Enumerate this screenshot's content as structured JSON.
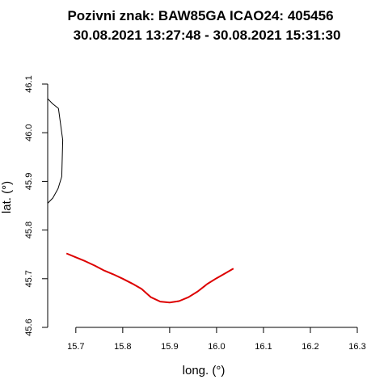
{
  "chart_data": {
    "type": "line",
    "title": "Pozivni znak: BAW85GA  ICAO24: 405456",
    "subtitle": "30.08.2021 13:27:48 - 30.08.2021 15:31:30",
    "xlabel": "long. (°)",
    "ylabel": "lat. (°)",
    "xlim": [
      15.64,
      16.3
    ],
    "ylim": [
      45.6,
      46.1
    ],
    "x_ticks": [
      "15.7",
      "15.8",
      "15.9",
      "16.0",
      "16.1",
      "16.2",
      "16.3"
    ],
    "y_ticks": [
      "45.6",
      "45.7",
      "45.8",
      "45.9",
      "46.0",
      "46.1"
    ],
    "grid": false,
    "series": [
      {
        "color": "#000000",
        "x": [
          15.64,
          15.65,
          15.663,
          15.672,
          15.67,
          15.662,
          15.651,
          15.64
        ],
        "y": [
          46.07,
          46.06,
          46.05,
          45.985,
          45.91,
          45.885,
          45.866,
          45.855
        ]
      },
      {
        "color": "#dd0000",
        "x": [
          15.68,
          15.7,
          15.72,
          15.74,
          15.76,
          15.78,
          15.8,
          15.82,
          15.84,
          15.86,
          15.88,
          15.9,
          15.92,
          15.94,
          15.96,
          15.98,
          16.0,
          16.02,
          16.036
        ],
        "y": [
          45.752,
          45.744,
          45.736,
          45.727,
          45.717,
          45.709,
          45.7,
          45.69,
          45.679,
          45.662,
          45.653,
          45.651,
          45.654,
          45.662,
          45.674,
          45.689,
          45.701,
          45.712,
          45.721
        ]
      }
    ]
  }
}
